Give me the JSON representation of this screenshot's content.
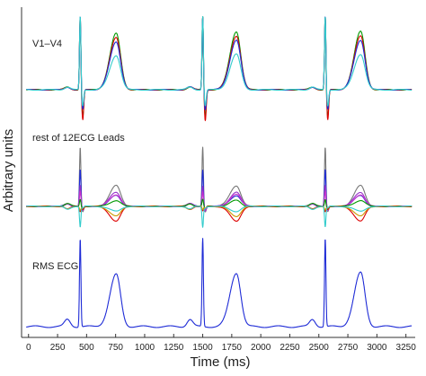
{
  "chart_data": {
    "type": "line",
    "xlabel": "Time (ms)",
    "ylabel": "Arbitrary units",
    "xlim": [
      -60,
      3330
    ],
    "xticks": [
      0,
      250,
      500,
      750,
      1000,
      1250,
      1500,
      1750,
      2000,
      2250,
      2500,
      2750,
      3000,
      3250
    ],
    "grid": false,
    "panels": [
      {
        "label": "V1–V4",
        "peaks": [
          {
            "r_time": 445,
            "r_height": 82,
            "t_time": 755,
            "t_height": 58
          },
          {
            "r_time": 1500,
            "r_height": 82,
            "t_time": 1790,
            "t_height": 60
          },
          {
            "r_time": 2555,
            "r_height": 82,
            "t_time": 2860,
            "t_height": 60
          }
        ],
        "series": [
          {
            "color": "#009900",
            "t_scale": 1.08,
            "r_scale": 1.0,
            "s_depth": -30
          },
          {
            "color": "#dd0000",
            "t_scale": 1.0,
            "r_scale": 1.0,
            "s_depth": -34
          },
          {
            "color": "#1e2bd6",
            "t_scale": 0.92,
            "r_scale": 1.0,
            "s_depth": -22
          },
          {
            "color": "#33cccc",
            "t_scale": 0.66,
            "r_scale": 1.0,
            "s_depth": -18
          }
        ]
      },
      {
        "label": "rest of 12ECG Leads",
        "peaks": [
          {
            "r_time": 445,
            "r_height": 66,
            "t_time": 755,
            "t_height": 22
          },
          {
            "r_time": 1500,
            "r_height": 66,
            "t_time": 1790,
            "t_height": 22
          },
          {
            "r_time": 2555,
            "r_height": 66,
            "t_time": 2860,
            "t_height": 22
          }
        ],
        "series": [
          {
            "color": "#777777",
            "t_scale": 1.05,
            "r_scale": 1.0,
            "s_depth": -6
          },
          {
            "color": "#1e2bd6",
            "t_scale": 0.55,
            "r_scale": 0.62,
            "s_depth": -4
          },
          {
            "color": "#9933cc",
            "t_scale": 0.72,
            "r_scale": 0.35,
            "s_depth": -5
          },
          {
            "color": "#cc33cc",
            "t_scale": 0.6,
            "r_scale": 0.25,
            "s_depth": -4
          },
          {
            "color": "#009900",
            "t_scale": 0.3,
            "r_scale": 0.12,
            "s_depth": -3
          },
          {
            "color": "#dd0000",
            "t_scale": -0.75,
            "r_scale": -0.08,
            "s_depth": -3
          },
          {
            "color": "#cc9900",
            "t_scale": -0.5,
            "r_scale": -0.06,
            "s_depth": -2
          },
          {
            "color": "#33cccc",
            "t_scale": -0.25,
            "r_scale": -0.35,
            "s_depth": -2
          }
        ]
      },
      {
        "label": "RMS ECG",
        "peaks": [
          {
            "r_time": 445,
            "r_height": 98,
            "t_time": 755,
            "t_height": 58
          },
          {
            "r_time": 1500,
            "r_height": 98,
            "t_time": 1790,
            "t_height": 60
          },
          {
            "r_time": 2555,
            "r_height": 98,
            "t_time": 2860,
            "t_height": 60
          }
        ],
        "series": [
          {
            "color": "#1e2bd6",
            "t_scale": 1.0,
            "r_scale": 1.0,
            "s_depth": 0
          }
        ]
      }
    ]
  }
}
